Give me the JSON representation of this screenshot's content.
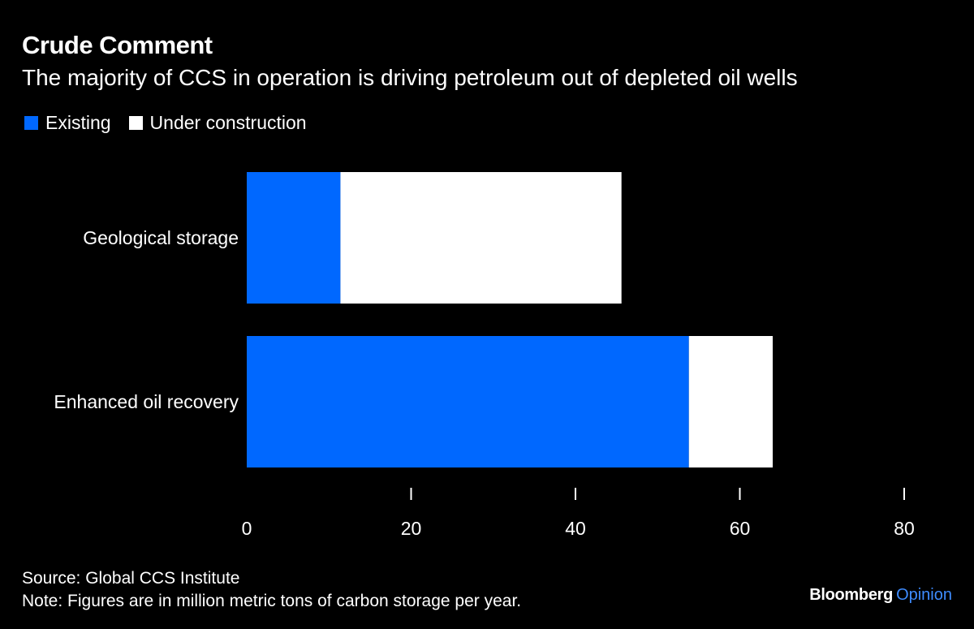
{
  "header": {
    "title": "Crude Comment",
    "subtitle": "The majority of CCS in operation is driving petroleum out of depleted oil wells"
  },
  "footer": {
    "source": "Source: Global CCS Institute",
    "note": "Note: Figures are in million metric tons of carbon storage per year."
  },
  "brand": {
    "name": "Bloomberg",
    "section": "Opinion",
    "section_color": "#3e8cff"
  },
  "colors": {
    "background": "#000000",
    "existing": "#0068ff",
    "under_construction": "#ffffff",
    "text": "#ffffff"
  },
  "chart_data": {
    "type": "bar",
    "orientation": "horizontal",
    "stacked": true,
    "title": "Crude Comment",
    "subtitle": "The majority of CCS in operation is driving petroleum out of depleted oil wells",
    "categories": [
      "Geological storage",
      "Enhanced oil recovery"
    ],
    "series": [
      {
        "name": "Existing",
        "color": "#0068ff",
        "values": [
          11.4,
          53.8
        ]
      },
      {
        "name": "Under construction",
        "color": "#ffffff",
        "values": [
          34.2,
          10.2
        ]
      }
    ],
    "xlim": [
      0,
      80
    ],
    "xticks": [
      0,
      20,
      40,
      60,
      80
    ],
    "xtick_labels": [
      "0",
      "20",
      "40",
      "60",
      "80"
    ],
    "xlabel": "",
    "ylabel": "",
    "legend": "top-left",
    "grid": false
  }
}
